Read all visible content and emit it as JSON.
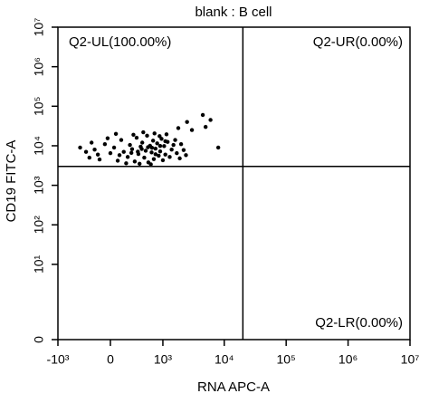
{
  "chart_data": {
    "type": "scatter",
    "title": "blank : B cell",
    "x_label": "RNA APC-A",
    "y_label": "CD19 FITC-A",
    "scale": "biexponential",
    "color": "#000000",
    "xlim": [
      -1000,
      10000000
    ],
    "ylim": [
      0,
      10000000
    ],
    "xticks": [
      {
        "value": -1000,
        "label": "-10³"
      },
      0,
      {
        "value": 1000,
        "label": "10³"
      },
      {
        "value": 10000,
        "label": "10⁴"
      },
      {
        "value": 100000,
        "label": "10⁵"
      },
      {
        "value": 1000000,
        "label": "10⁶"
      },
      {
        "value": 10000000,
        "label": "10⁷"
      }
    ],
    "yticks": [
      0,
      {
        "value": 10,
        "label": "10¹"
      },
      {
        "value": 100,
        "label": "10²"
      },
      {
        "value": 1000,
        "label": "10³"
      },
      {
        "value": 10000,
        "label": "10⁴"
      },
      {
        "value": 100000,
        "label": "10⁵"
      },
      {
        "value": 1000000,
        "label": "10⁶"
      },
      {
        "value": 10000000,
        "label": "10⁷"
      }
    ],
    "gates": {
      "x": 20000,
      "y": 3000
    },
    "quadrants": {
      "upper_left": "Q2-UL(100.00%)",
      "upper_right": "Q2-UR(0.00%)",
      "lower_right": "Q2-LR(0.00%)"
    },
    "x": [
      -250,
      -180,
      -120,
      -60,
      0,
      40,
      80,
      120,
      150,
      200,
      230,
      260,
      300,
      330,
      360,
      400,
      430,
      470,
      500,
      530,
      560,
      600,
      640,
      680,
      700,
      750,
      800,
      850,
      900,
      950,
      1000,
      1050,
      1100,
      1200,
      1300,
      1400,
      1500,
      1700,
      1900,
      2200,
      -220,
      -140,
      -30,
      60,
      180,
      280,
      380,
      450,
      620,
      720,
      880,
      1150,
      1600,
      2000,
      2400,
      -300,
      100,
      350,
      550,
      750,
      420,
      650,
      250,
      900,
      1100,
      3000,
      5000,
      4500,
      6000,
      1800,
      8000,
      2500,
      -400
    ],
    "y": [
      5000,
      8000,
      4500,
      11000,
      6500,
      9000,
      4200,
      14000,
      7000,
      5200,
      10500,
      8200,
      4000,
      16000,
      6200,
      9500,
      12000,
      5000,
      7500,
      18000,
      3800,
      10000,
      6800,
      13500,
      4600,
      8500,
      11500,
      5600,
      7200,
      15000,
      4300,
      9800,
      6000,
      12500,
      5200,
      8000,
      10500,
      6500,
      4800,
      7800,
      12000,
      6000,
      15500,
      20000,
      3600,
      19000,
      3500,
      22000,
      3400,
      20500,
      17500,
      19500,
      14000,
      11000,
      5800,
      7000,
      5800,
      7100,
      9200,
      6100,
      8300,
      8900,
      6600,
      9900,
      13000,
      25000,
      30000,
      60000,
      45000,
      28000,
      9000,
      40000,
      9000
    ]
  }
}
